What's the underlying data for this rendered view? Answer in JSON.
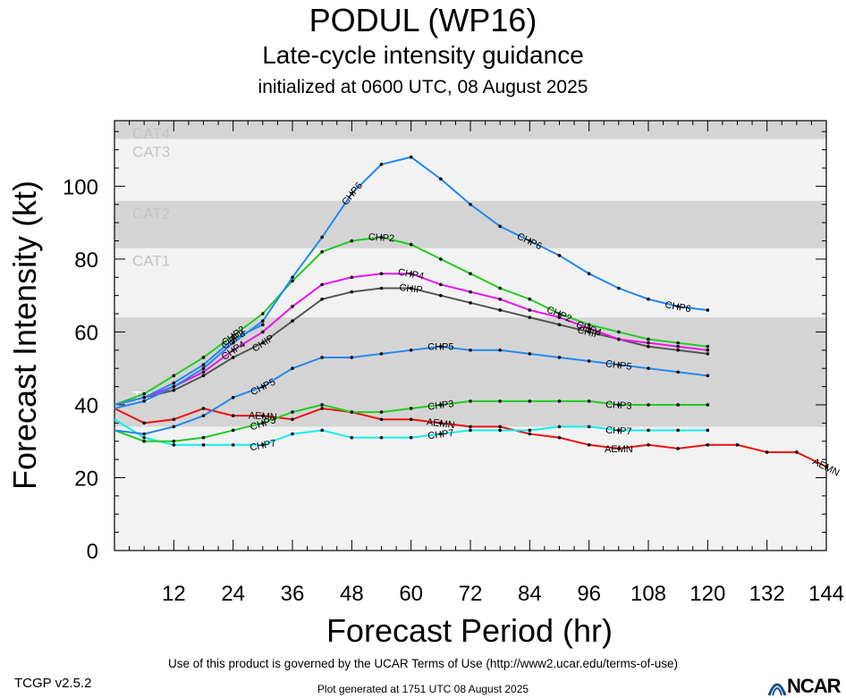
{
  "header": {
    "title": "PODUL (WP16)",
    "subtitle": "Late-cycle intensity guidance",
    "init": "initialized at 0600 UTC, 08 August 2025"
  },
  "footer": {
    "terms": "Use of this product is governed by the UCAR Terms of Use (http://www2.ucar.edu/terms-of-use)",
    "generated": "Plot generated at 1751 UTC   08 August 2025",
    "version": "TCGP v2.5.2",
    "logo": "NCAR"
  },
  "chart_data": {
    "type": "line",
    "title": "PODUL (WP16)",
    "xlabel": "Forecast Period (hr)",
    "ylabel": "Forecast Intensity (kt)",
    "xlim": [
      0,
      144
    ],
    "ylim": [
      0,
      118
    ],
    "xticks": [
      12,
      24,
      36,
      48,
      60,
      72,
      84,
      96,
      108,
      120,
      132,
      144
    ],
    "yticks": [
      0,
      20,
      40,
      60,
      80,
      100
    ],
    "bands": [
      {
        "label": "TS",
        "from": 34,
        "to": 64,
        "color": "#d4d4d4"
      },
      {
        "label": "CAT1",
        "from": 64,
        "to": 83,
        "color": "#f2f2f2"
      },
      {
        "label": "CAT2",
        "from": 83,
        "to": 96,
        "color": "#d4d4d4"
      },
      {
        "label": "CAT3",
        "from": 96,
        "to": 113,
        "color": "#f2f2f2"
      },
      {
        "label": "CAT4",
        "from": 113,
        "to": 118,
        "color": "#d4d4d4"
      }
    ],
    "series": [
      {
        "name": "AEMN",
        "color": "#ee1111",
        "x": [
          0,
          6,
          12,
          18,
          24,
          30,
          36,
          42,
          48,
          54,
          60,
          66,
          72,
          78,
          84,
          90,
          96,
          102,
          108,
          114,
          120,
          126,
          132,
          138,
          144
        ],
        "y": [
          39,
          35,
          36,
          39,
          37,
          37,
          36,
          39,
          38,
          36,
          36,
          35,
          34,
          34,
          32,
          31,
          29,
          28,
          29,
          28,
          29,
          29,
          27,
          27,
          23
        ],
        "labels_at": [
          30,
          66,
          102,
          144
        ]
      },
      {
        "name": "CHP7",
        "color": "#11eeee",
        "x": [
          0,
          6,
          12,
          18,
          24,
          30,
          36,
          42,
          48,
          54,
          60,
          66,
          72,
          78,
          84,
          90,
          96,
          102,
          108,
          114,
          120
        ],
        "y": [
          36,
          31,
          29,
          29,
          29,
          29,
          32,
          33,
          31,
          31,
          31,
          32,
          33,
          33,
          33,
          34,
          34,
          33,
          33,
          33,
          33
        ],
        "labels_at": [
          30,
          66,
          102
        ]
      },
      {
        "name": "CHP3",
        "color": "#22cc22",
        "x": [
          0,
          6,
          12,
          18,
          24,
          30,
          36,
          42,
          48,
          54,
          60,
          66,
          72,
          78,
          84,
          90,
          96,
          102,
          108,
          114,
          120
        ],
        "y": [
          33,
          30,
          30,
          31,
          33,
          35,
          38,
          40,
          38,
          38,
          39,
          40,
          41,
          41,
          41,
          41,
          41,
          40,
          40,
          40,
          40
        ],
        "labels_at": [
          30,
          66,
          102
        ]
      },
      {
        "name": "CHP5",
        "color": "#2288ee",
        "x": [
          0,
          6,
          12,
          18,
          24,
          30,
          36,
          42,
          48,
          54,
          60,
          66,
          72,
          78,
          84,
          90,
          96,
          102,
          108,
          114,
          120
        ],
        "y": [
          33,
          32,
          34,
          37,
          42,
          45,
          50,
          53,
          53,
          54,
          55,
          56,
          55,
          55,
          54,
          53,
          52,
          51,
          50,
          49,
          48
        ],
        "labels_at": [
          30,
          66,
          102
        ]
      },
      {
        "name": "CHIP",
        "color": "#555555",
        "x": [
          0,
          6,
          12,
          18,
          24,
          30,
          36,
          42,
          48,
          54,
          60,
          66,
          72,
          78,
          84,
          90,
          96,
          102,
          108,
          114,
          120
        ],
        "y": [
          40,
          42,
          44,
          48,
          53,
          57,
          63,
          69,
          71,
          72,
          72,
          70,
          68,
          66,
          64,
          62,
          60,
          58,
          56,
          55,
          54
        ],
        "labels_at": [
          30,
          60,
          96
        ]
      },
      {
        "name": "CHP4",
        "color": "#ee11ee",
        "x": [
          0,
          6,
          12,
          18,
          24,
          30,
          36,
          42,
          48,
          54,
          60,
          66,
          72,
          78,
          84,
          90,
          96,
          102,
          108,
          114,
          120
        ],
        "y": [
          40,
          42,
          45,
          49,
          55,
          60,
          67,
          73,
          75,
          76,
          76,
          73,
          71,
          69,
          66,
          64,
          61,
          58,
          57,
          56,
          55
        ],
        "labels_at": [
          24,
          60,
          96
        ]
      },
      {
        "name": "CHP2",
        "color": "#22cc22",
        "x": [
          0,
          6,
          12,
          18,
          24,
          30,
          36,
          42,
          48,
          54,
          60,
          66,
          72,
          78,
          84,
          90,
          96,
          102,
          108,
          114,
          120
        ],
        "y": [
          40,
          43,
          48,
          53,
          59,
          65,
          74,
          82,
          85,
          86,
          84,
          80,
          76,
          72,
          69,
          65,
          62,
          60,
          58,
          57,
          56
        ],
        "labels_at": [
          24,
          54,
          90
        ]
      },
      {
        "name": "CHP8",
        "color": "#2288ee",
        "x": [
          0,
          6,
          12,
          18,
          24,
          30
        ],
        "y": [
          40,
          42,
          46,
          51,
          58,
          62
        ],
        "labels_at": [
          24
        ]
      },
      {
        "name": "CHP6",
        "color": "#2288ee",
        "x": [
          0,
          6,
          12,
          18,
          24,
          30,
          36,
          42,
          48,
          54,
          60,
          66,
          72,
          78,
          84,
          90,
          96,
          102,
          108,
          114,
          120
        ],
        "y": [
          39,
          41,
          45,
          50,
          57,
          63,
          75,
          86,
          98,
          106,
          108,
          102,
          95,
          89,
          85,
          81,
          76,
          72,
          69,
          67,
          66
        ],
        "labels_at": [
          48,
          84,
          114
        ]
      }
    ]
  }
}
